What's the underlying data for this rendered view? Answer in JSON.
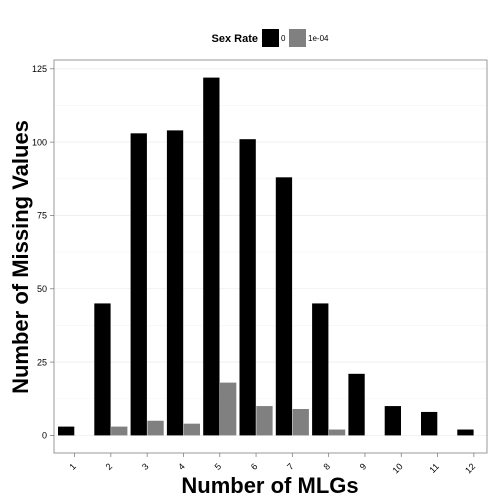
{
  "chart_data": {
    "type": "bar",
    "xlabel": "Number of MLGs",
    "ylabel": "Number of Missing Values",
    "categories": [
      "1",
      "2",
      "3",
      "4",
      "5",
      "6",
      "7",
      "8",
      "9",
      "10",
      "11",
      "12"
    ],
    "series": [
      {
        "name": "0",
        "color": "#000000",
        "values": [
          3,
          45,
          103,
          104,
          122,
          101,
          88,
          45,
          21,
          10,
          8,
          2
        ]
      },
      {
        "name": "1e-04",
        "color": "#808080",
        "values": [
          null,
          3,
          5,
          4,
          18,
          10,
          9,
          2,
          null,
          null,
          null,
          null
        ]
      }
    ],
    "ylim": [
      -6,
      128
    ],
    "yticks": [
      0,
      25,
      50,
      75,
      100,
      125
    ],
    "legend": {
      "title": "Sex Rate",
      "position": "top"
    },
    "grid": true
  }
}
